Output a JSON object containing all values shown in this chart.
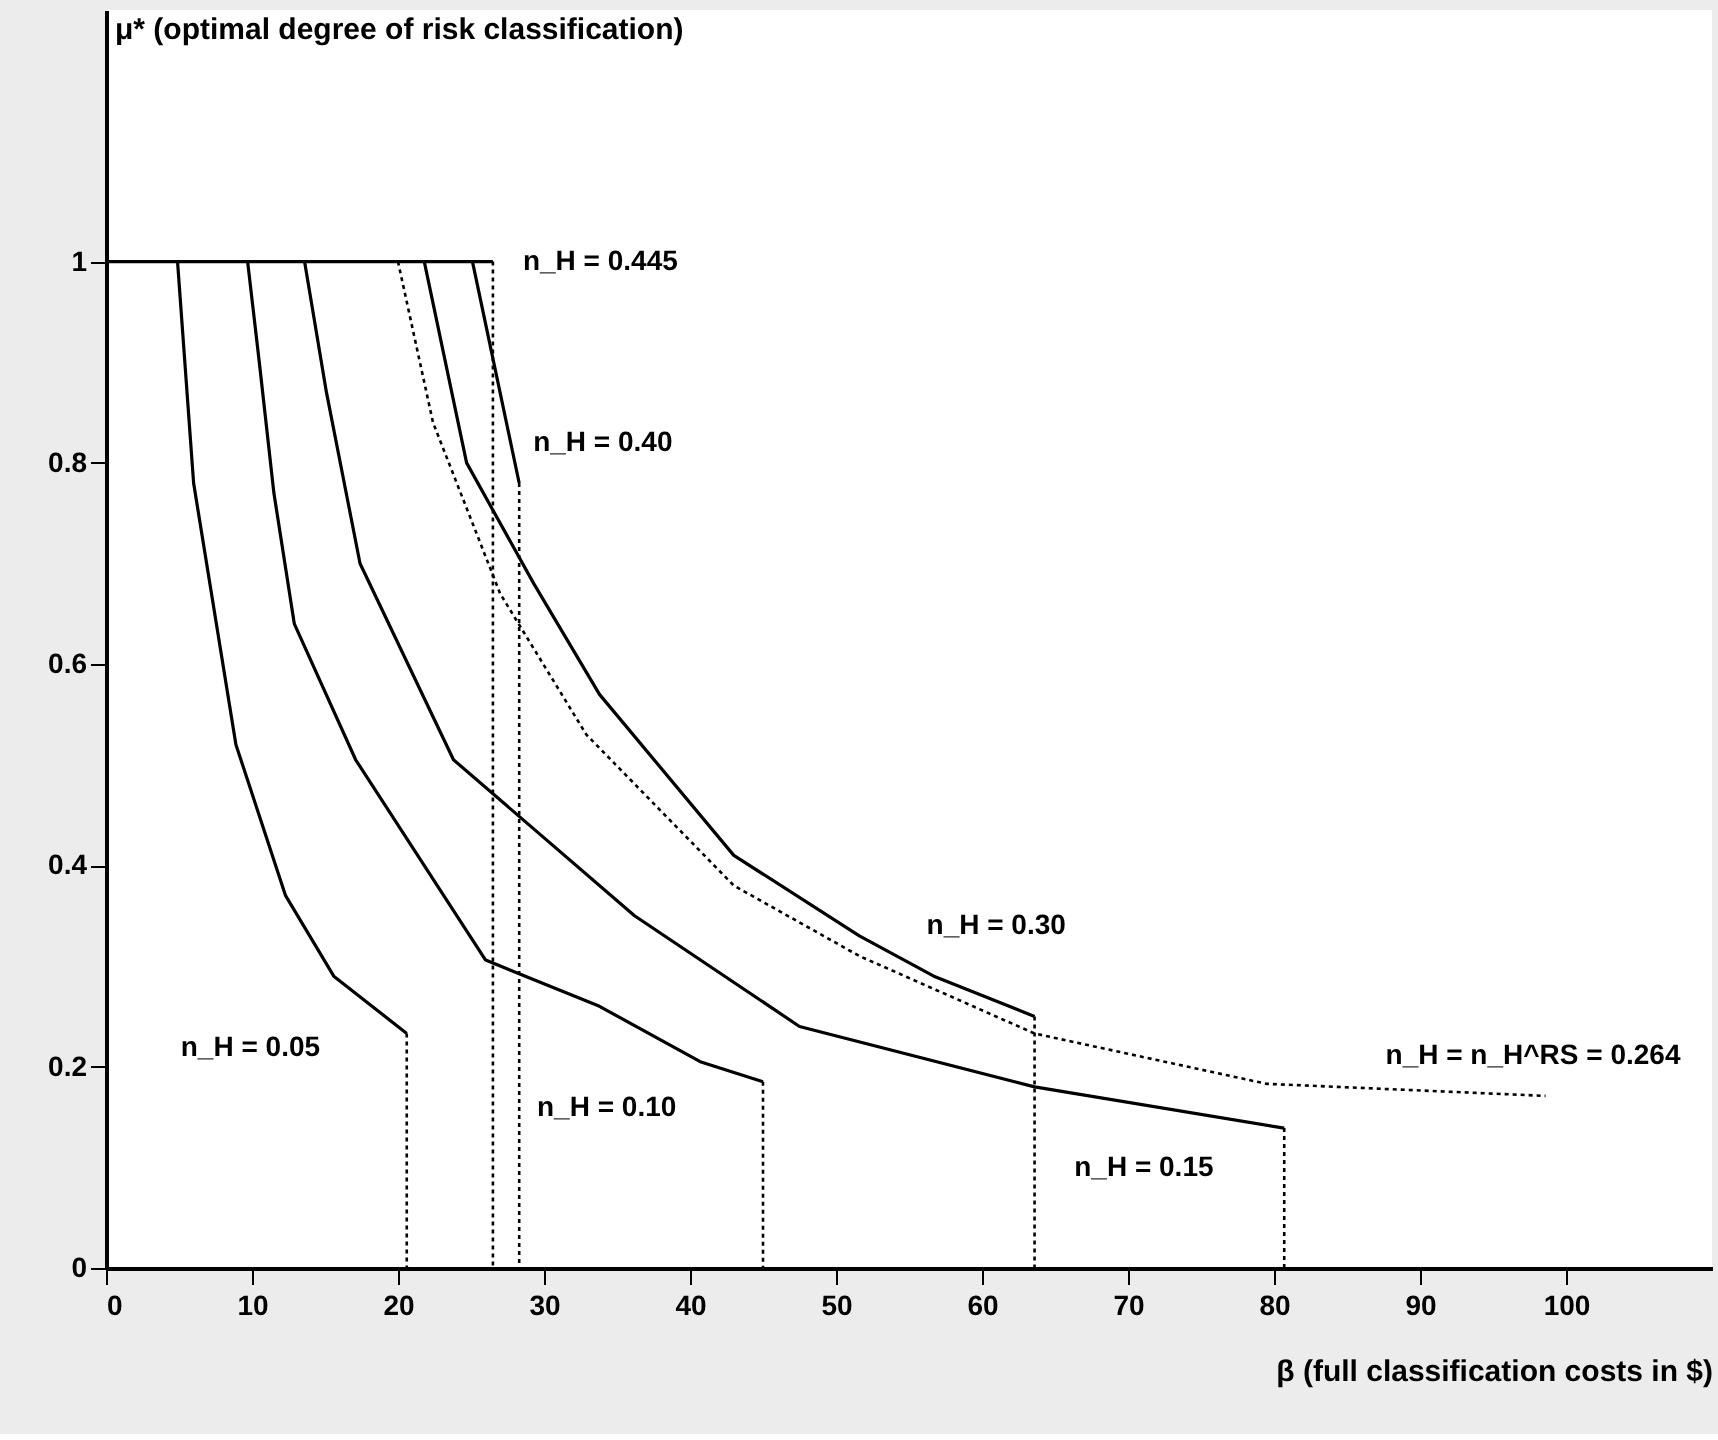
{
  "chart_data": {
    "type": "line",
    "ylabel": "μ* (optimal degree of risk classification)",
    "xlabel": "β (full classification costs in $)",
    "xlim": [
      0,
      110
    ],
    "xticks": [
      0,
      10,
      20,
      30,
      40,
      50,
      60,
      70,
      80,
      90,
      100
    ],
    "ylim": [
      0,
      1.25
    ],
    "yticks": [
      0,
      0.2,
      0.4,
      0.6,
      0.8,
      1
    ],
    "grid": false,
    "marker": "none",
    "series": [
      {
        "name": "n_H = 0.05",
        "color": "#000000",
        "line_style": "solid",
        "x": [
          4.9,
          6.0,
          8.9,
          12.3,
          15.6,
          20.6
        ],
        "values": [
          1,
          0.78,
          0.52,
          0.37,
          0.29,
          0.233
        ]
      },
      {
        "name": "n_H = 0.10",
        "color": "#000000",
        "line_style": "solid",
        "x": [
          9.7,
          10.5,
          11.5,
          12.9,
          17.1,
          26.0,
          33.8,
          40.7,
          45.0
        ],
        "values": [
          1,
          0.9,
          0.77,
          0.64,
          0.505,
          0.306,
          0.26,
          0.205,
          0.185
        ]
      },
      {
        "name": "n_H = 0.15",
        "color": "#000000",
        "line_style": "solid",
        "x": [
          13.6,
          15.1,
          17.4,
          23.8,
          36.2,
          47.5,
          63.6,
          80.7
        ],
        "values": [
          1,
          0.87,
          0.7,
          0.505,
          0.35,
          0.24,
          0.18,
          0.139
        ]
      },
      {
        "name": "n_H = 0.30",
        "color": "#000000",
        "line_style": "solid",
        "x": [
          21.8,
          24.7,
          29.3,
          33.8,
          43.0,
          51.6,
          56.7,
          63.6
        ],
        "values": [
          1,
          0.8,
          0.68,
          0.57,
          0.41,
          0.33,
          0.29,
          0.25
        ]
      },
      {
        "name": "n_H = n_H^RS = 0.264",
        "color": "#000000",
        "line_style": "dotted",
        "x": [
          20.0,
          22.4,
          27.0,
          32.9,
          43.0,
          51.6,
          63.6,
          79.5,
          98.6
        ],
        "values": [
          1,
          0.84,
          0.67,
          0.53,
          0.38,
          0.31,
          0.233,
          0.183,
          0.171
        ]
      },
      {
        "name": "n_H = 0.40",
        "color": "#000000",
        "line_style": "solid",
        "x": [
          25.1,
          28.3
        ],
        "values": [
          1,
          0.78
        ]
      },
      {
        "name": "n_H = 0.445",
        "color": "#000000",
        "line_style": "solid",
        "x": [
          0,
          26.5
        ],
        "values": [
          1,
          1
        ]
      },
      {
        "color": "#000000",
        "line_style": "dotted",
        "x": [
          20.6,
          20.6
        ],
        "values": [
          0.233,
          0
        ]
      },
      {
        "color": "#000000",
        "line_style": "dotted",
        "x": [
          45.0,
          45.0
        ],
        "values": [
          0.185,
          0
        ]
      },
      {
        "color": "#000000",
        "line_style": "dotted",
        "x": [
          80.7,
          80.7
        ],
        "values": [
          0.139,
          0
        ]
      },
      {
        "color": "#000000",
        "line_style": "dotted",
        "x": [
          63.6,
          63.6
        ],
        "values": [
          0.25,
          0
        ]
      },
      {
        "color": "#000000",
        "line_style": "dotted",
        "x": [
          28.3,
          28.3
        ],
        "values": [
          0.78,
          0
        ]
      },
      {
        "color": "#000000",
        "line_style": "dotted",
        "x": [
          26.5,
          26.5
        ],
        "values": [
          1,
          0
        ]
      }
    ]
  }
}
